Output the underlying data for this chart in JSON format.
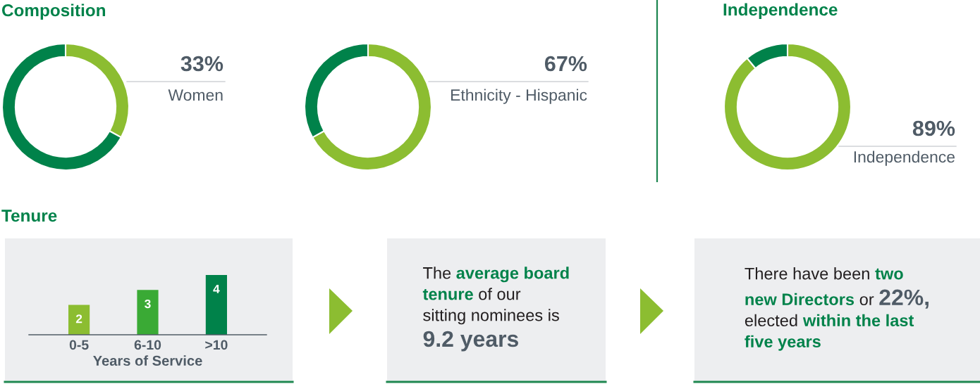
{
  "chart_data": [
    {
      "type": "donut",
      "title": "Composition",
      "categories": [
        "Women",
        null
      ],
      "values": [
        33,
        67
      ],
      "colors": [
        "#8cbd31",
        "#00824a"
      ],
      "value_labels": [
        "33%",
        null
      ]
    },
    {
      "type": "donut",
      "categories": [
        "Ethnicity - Hispanic",
        null
      ],
      "values": [
        67,
        33
      ],
      "colors": [
        "#8cbd31",
        "#00824a"
      ],
      "value_labels": [
        "67%",
        null
      ]
    },
    {
      "type": "donut",
      "title": "Independence",
      "categories": [
        "Independence",
        null
      ],
      "values": [
        89,
        11
      ],
      "colors": [
        "#8cbd31",
        "#00824a"
      ],
      "value_labels": [
        "89%",
        null
      ]
    },
    {
      "type": "bar",
      "title": "Tenure",
      "categories": [
        "0-5",
        "6-10",
        ">10"
      ],
      "values": [
        2,
        3,
        4
      ],
      "colors": [
        "#8cbd31",
        "#3aaa35",
        "#00824a"
      ],
      "xlabel": "Years of Service",
      "data_labels": true,
      "tick_labels": "x"
    },
    {
      "type": "other",
      "annotations": [
        "The ",
        "average board\n",
        "tenure",
        " of our\n",
        "sitting nominees is\n",
        "9.2 years"
      ]
    },
    {
      "type": "other",
      "annotations": [
        "There have been ",
        "two\n",
        "new Directors",
        " or ",
        "22%,\n",
        "elected ",
        "within the last\n",
        "five years"
      ]
    }
  ]
}
